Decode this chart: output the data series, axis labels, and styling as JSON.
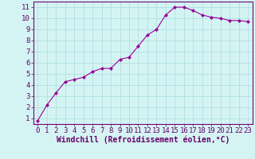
{
  "x": [
    0,
    1,
    2,
    3,
    4,
    5,
    6,
    7,
    8,
    9,
    10,
    11,
    12,
    13,
    14,
    15,
    16,
    17,
    18,
    19,
    20,
    21,
    22,
    23
  ],
  "y": [
    0.8,
    2.2,
    3.3,
    4.3,
    4.5,
    4.7,
    5.2,
    5.5,
    5.5,
    6.3,
    6.5,
    7.5,
    8.5,
    9.0,
    10.3,
    11.0,
    11.0,
    10.7,
    10.3,
    10.1,
    10.0,
    9.8,
    9.8,
    9.7
  ],
  "line_color": "#990099",
  "marker": "D",
  "marker_size": 2,
  "bg_color": "#d4f4f4",
  "grid_color": "#aadddd",
  "xlabel": "Windchill (Refroidissement éolien,°C)",
  "xlabel_color": "#660066",
  "tick_color": "#660066",
  "ylim": [
    0.5,
    11.5
  ],
  "xlim": [
    -0.5,
    23.5
  ],
  "yticks": [
    1,
    2,
    3,
    4,
    5,
    6,
    7,
    8,
    9,
    10,
    11
  ],
  "xticks": [
    0,
    1,
    2,
    3,
    4,
    5,
    6,
    7,
    8,
    9,
    10,
    11,
    12,
    13,
    14,
    15,
    16,
    17,
    18,
    19,
    20,
    21,
    22,
    23
  ],
  "spine_color": "#770077",
  "font_size_ticks": 6.5,
  "font_size_xlabel": 7.0,
  "line_width": 0.8
}
